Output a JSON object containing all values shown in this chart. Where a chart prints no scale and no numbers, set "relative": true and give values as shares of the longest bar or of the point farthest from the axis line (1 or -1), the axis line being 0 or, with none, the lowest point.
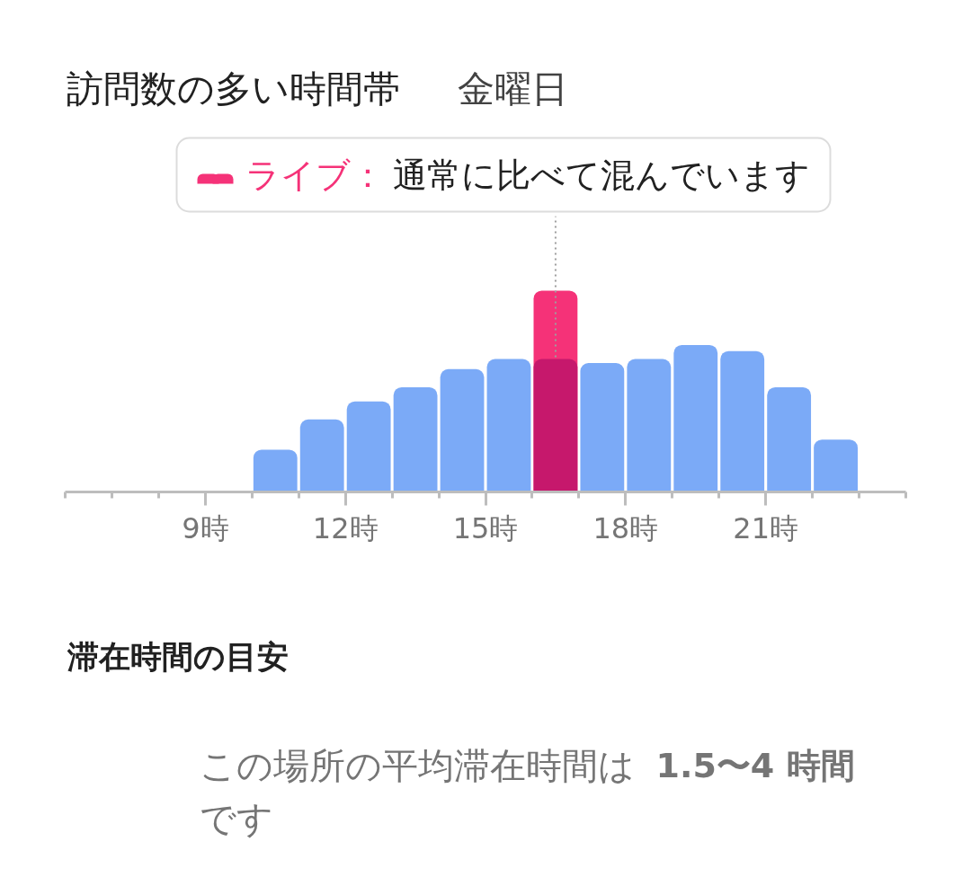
{
  "chart_data": {
    "type": "bar",
    "title": "訪問数の多い時間帯",
    "subtitle": "金曜日",
    "relative": true,
    "tick_labels": "x",
    "x": [
      10.5,
      11.5,
      12.5,
      13.5,
      14.5,
      15.5,
      16.5,
      17.5,
      18.5,
      19.5,
      20.5,
      21.5,
      22.5
    ],
    "xlim": [
      6,
      24
    ],
    "xticks": [
      {
        "value": 6,
        "label": null
      },
      {
        "value": 7,
        "label": null
      },
      {
        "value": 8,
        "label": null
      },
      {
        "value": 9,
        "label": "9時"
      },
      {
        "value": 10,
        "label": null
      },
      {
        "value": 11,
        "label": null
      },
      {
        "value": 12,
        "label": "12時"
      },
      {
        "value": 13,
        "label": null
      },
      {
        "value": 14,
        "label": null
      },
      {
        "value": 15,
        "label": "15時"
      },
      {
        "value": 16,
        "label": null
      },
      {
        "value": 17,
        "label": null
      },
      {
        "value": 18,
        "label": "18時"
      },
      {
        "value": 19,
        "label": null
      },
      {
        "value": 20,
        "label": null
      },
      {
        "value": 21,
        "label": "21時"
      },
      {
        "value": 22,
        "label": null
      },
      {
        "value": 23,
        "label": null
      },
      {
        "value": 24,
        "label": null
      }
    ],
    "series": [
      {
        "name": "ライブ：",
        "color": "#f53278",
        "values": [
          null,
          null,
          null,
          null,
          null,
          null,
          1,
          null,
          null,
          null,
          null,
          null,
          null
        ]
      },
      {
        "colors": [
          "#7baaf7",
          "#7baaf7",
          "#7baaf7",
          "#7baaf7",
          "#7baaf7",
          "#7baaf7",
          "#c6186c",
          "#7baaf7",
          "#7baaf7",
          "#7baaf7",
          "#7baaf7",
          "#7baaf7",
          "#7baaf7"
        ],
        "values": [
          0.21,
          0.36,
          0.45,
          0.52,
          0.61,
          0.66,
          0.66,
          0.64,
          0.66,
          0.73,
          0.7,
          0.52,
          0.26
        ]
      }
    ],
    "ref_lines": [
      {
        "axis": "x",
        "value": 16.5,
        "label": "通常に比べて混んでいます",
        "color": "#9e9e9e",
        "line_style": "dotted"
      }
    ],
    "annotations": [
      "滞在時間の目安",
      "この場所の平均滞在時間は",
      "1.5〜4 時間",
      "です"
    ]
  }
}
